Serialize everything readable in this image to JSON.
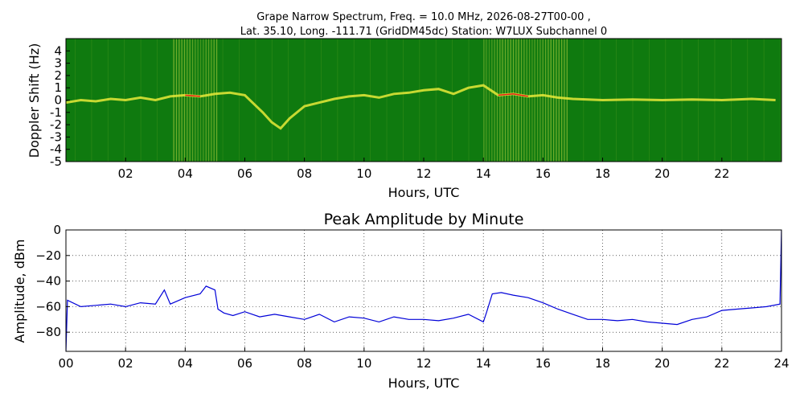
{
  "chart_data": [
    {
      "type": "heatmap",
      "title_line1": "Grape Narrow Spectrum, Freq. = 10.0 MHz, 2026-08-27T00-00 ,",
      "title_line2": "Lat.  35.10, Long. -111.71 (GridDM45dc) Station: W7LUX Subchannel 0",
      "xlabel": "Hours, UTC",
      "ylabel": "Doppler Shift (Hz)",
      "xlim": [
        0,
        24
      ],
      "ylim": [
        -5,
        5
      ],
      "x_ticks": [
        "02",
        "04",
        "06",
        "08",
        "10",
        "12",
        "14",
        "16",
        "18",
        "20",
        "22"
      ],
      "y_ticks": [
        "4",
        "3",
        "2",
        "1",
        "0",
        "-1",
        "-2",
        "-3",
        "-4",
        "-5"
      ],
      "colors": {
        "background": "#0f7a0f",
        "trace": "#e8ea38",
        "peak": "#e8201a",
        "streak": "#a6c93a"
      },
      "doppler_trace": {
        "x": [
          0,
          0.5,
          1,
          1.5,
          2,
          2.5,
          3,
          3.5,
          4,
          4.5,
          5,
          5.5,
          6,
          6.3,
          6.6,
          6.9,
          7.2,
          7.5,
          8,
          8.5,
          9,
          9.5,
          10,
          10.5,
          11,
          11.5,
          12,
          12.5,
          13,
          13.5,
          14,
          14.5,
          15,
          15.5,
          16,
          16.5,
          17,
          18,
          19,
          20,
          21,
          22,
          23,
          23.8
        ],
        "y": [
          -0.2,
          0,
          -0.1,
          0.1,
          0,
          0.2,
          0,
          0.3,
          0.4,
          0.3,
          0.5,
          0.6,
          0.4,
          -0.3,
          -1.0,
          -1.8,
          -2.3,
          -1.5,
          -0.5,
          -0.2,
          0.1,
          0.3,
          0.4,
          0.2,
          0.5,
          0.6,
          0.8,
          0.9,
          0.5,
          1.0,
          1.2,
          0.4,
          0.5,
          0.3,
          0.4,
          0.2,
          0.1,
          0,
          0.05,
          0,
          0.05,
          0,
          0.1,
          0
        ]
      }
    },
    {
      "type": "line",
      "title": "Peak Amplitude by Minute",
      "xlabel": "Hours, UTC",
      "ylabel": "Amplitude, dBm",
      "xlim": [
        0,
        24
      ],
      "ylim": [
        -95,
        0
      ],
      "x_ticks": [
        "00",
        "02",
        "04",
        "06",
        "08",
        "10",
        "12",
        "14",
        "16",
        "18",
        "20",
        "22",
        "24"
      ],
      "y_ticks": [
        "0",
        "−20",
        "−40",
        "−60",
        "−80"
      ],
      "grid": true,
      "colors": {
        "line": "#0000d8"
      },
      "series": [
        {
          "x": [
            0,
            0.05,
            0.5,
            1,
            1.5,
            2,
            2.5,
            3,
            3.3,
            3.5,
            4,
            4.5,
            4.7,
            5,
            5.1,
            5.3,
            5.6,
            6,
            6.5,
            7,
            7.5,
            8,
            8.5,
            9,
            9.5,
            10,
            10.5,
            11,
            11.5,
            12,
            12.5,
            13,
            13.5,
            14,
            14.1,
            14.3,
            14.6,
            15,
            15.5,
            16,
            16.5,
            17,
            17.5,
            18,
            18.5,
            19,
            19.5,
            20,
            20.5,
            21,
            21.5,
            22,
            22.5,
            23,
            23.5,
            23.95,
            24
          ],
          "y": [
            -95,
            -55,
            -60,
            -59,
            -58,
            -60,
            -57,
            -58,
            -47,
            -58,
            -53,
            -50,
            -44,
            -47,
            -62,
            -65,
            -67,
            -64,
            -68,
            -66,
            -68,
            -70,
            -66,
            -72,
            -68,
            -69,
            -72,
            -68,
            -70,
            -70,
            -71,
            -69,
            -66,
            -72,
            -65,
            -50,
            -49,
            -51,
            -53,
            -57,
            -62,
            -66,
            -70,
            -70,
            -71,
            -70,
            -72,
            -73,
            -74,
            -70,
            -68,
            -63,
            -62,
            -61,
            -60,
            -58,
            0
          ]
        }
      ]
    }
  ]
}
